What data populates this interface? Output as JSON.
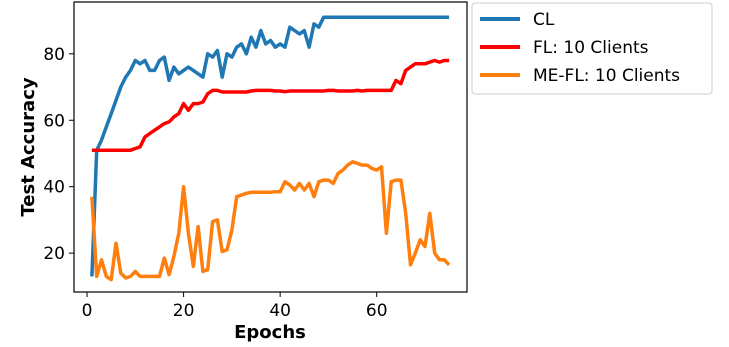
{
  "chart_data": {
    "type": "line",
    "xlabel": "Epochs",
    "ylabel": "Test Accuracy",
    "xlim": [
      -2.7,
      78.7
    ],
    "ylim": [
      8.3,
      95.6
    ],
    "xticks": [
      0,
      20,
      40,
      60
    ],
    "yticks": [
      20,
      40,
      60,
      80
    ],
    "grid": false,
    "legend_position": "outside-upper-right",
    "series": [
      {
        "name": "CL",
        "color": "#1f77b4",
        "x": [
          1,
          2,
          3,
          4,
          5,
          6,
          7,
          8,
          9,
          10,
          11,
          12,
          13,
          14,
          15,
          16,
          17,
          18,
          19,
          20,
          21,
          22,
          23,
          24,
          25,
          26,
          27,
          28,
          29,
          30,
          31,
          32,
          33,
          34,
          35,
          36,
          37,
          38,
          39,
          40,
          41,
          42,
          43,
          44,
          45,
          46,
          47,
          48,
          49,
          50,
          51,
          75
        ],
        "y": [
          13,
          51,
          54,
          58,
          62,
          66,
          70,
          73,
          75,
          78,
          77,
          78,
          75,
          75,
          78,
          79,
          72,
          76,
          74,
          75,
          76,
          75,
          74,
          73,
          80,
          79,
          81,
          73,
          80,
          79,
          82,
          83,
          80,
          85,
          82,
          87,
          83,
          84,
          82,
          83,
          82,
          88,
          87,
          86,
          87,
          82,
          89,
          88,
          91,
          91,
          91,
          91
        ]
      },
      {
        "name": "FL: 10 Clients",
        "color": "#ff0000",
        "x": [
          1,
          2,
          3,
          4,
          5,
          6,
          7,
          8,
          9,
          10,
          11,
          12,
          13,
          14,
          15,
          16,
          17,
          18,
          19,
          20,
          21,
          22,
          23,
          24,
          25,
          26,
          27,
          28,
          29,
          30,
          31,
          32,
          33,
          34,
          35,
          36,
          37,
          38,
          39,
          40,
          41,
          42,
          43,
          44,
          45,
          46,
          47,
          48,
          49,
          50,
          51,
          52,
          53,
          54,
          55,
          56,
          57,
          58,
          59,
          60,
          61,
          62,
          63,
          64,
          65,
          66,
          67,
          68,
          69,
          70,
          71,
          72,
          73,
          74,
          75
        ],
        "y": [
          51,
          51,
          51,
          51,
          51,
          51,
          51,
          51,
          51,
          51.5,
          52,
          55,
          56,
          57,
          58,
          59,
          59.5,
          61,
          62,
          65,
          63,
          65,
          65,
          65.5,
          68,
          69,
          69,
          68.5,
          68.5,
          68.5,
          68.5,
          68.5,
          68.5,
          68.8,
          69,
          69,
          69,
          69,
          68.8,
          68.8,
          68.6,
          68.8,
          68.8,
          68.8,
          68.8,
          68.8,
          68.8,
          68.8,
          68.8,
          69,
          69,
          68.8,
          68.8,
          68.8,
          68.8,
          69,
          68.8,
          69,
          69,
          69,
          69,
          69,
          69,
          72,
          71,
          75,
          76,
          77,
          77,
          77,
          77.5,
          78,
          77.5,
          78,
          78
        ]
      },
      {
        "name": "ME-FL: 10 Clients",
        "color": "#ff7f0e",
        "x": [
          1,
          2,
          3,
          4,
          5,
          6,
          7,
          8,
          9,
          10,
          11,
          12,
          13,
          14,
          15,
          16,
          17,
          18,
          19,
          20,
          21,
          22,
          23,
          24,
          25,
          26,
          27,
          28,
          29,
          30,
          31,
          32,
          33,
          34,
          35,
          36,
          37,
          38,
          39,
          40,
          41,
          42,
          43,
          44,
          45,
          46,
          47,
          48,
          49,
          50,
          51,
          52,
          53,
          54,
          55,
          56,
          57,
          58,
          59,
          60,
          61,
          62,
          63,
          64,
          65,
          66,
          67,
          68,
          69,
          70,
          71,
          72,
          73,
          74,
          75
        ],
        "y": [
          37,
          13,
          18,
          13,
          12,
          23,
          14,
          12.5,
          13,
          14.5,
          13,
          13,
          13,
          13,
          13,
          18.5,
          13.5,
          19,
          26,
          40,
          26,
          16,
          28,
          14.5,
          15,
          29.5,
          30,
          20.5,
          21,
          27,
          37,
          37.5,
          38,
          38.3,
          38.3,
          38.3,
          38.3,
          38.3,
          38.5,
          38.5,
          41.5,
          40.5,
          39,
          41,
          39,
          41,
          37,
          41.5,
          42,
          42,
          41,
          44,
          45,
          46.5,
          47.5,
          47,
          46.5,
          46.5,
          45.5,
          45,
          46,
          26,
          41.5,
          42,
          42,
          32,
          16.5,
          20,
          24,
          22,
          32,
          20,
          18,
          18,
          16.5
        ]
      }
    ]
  }
}
